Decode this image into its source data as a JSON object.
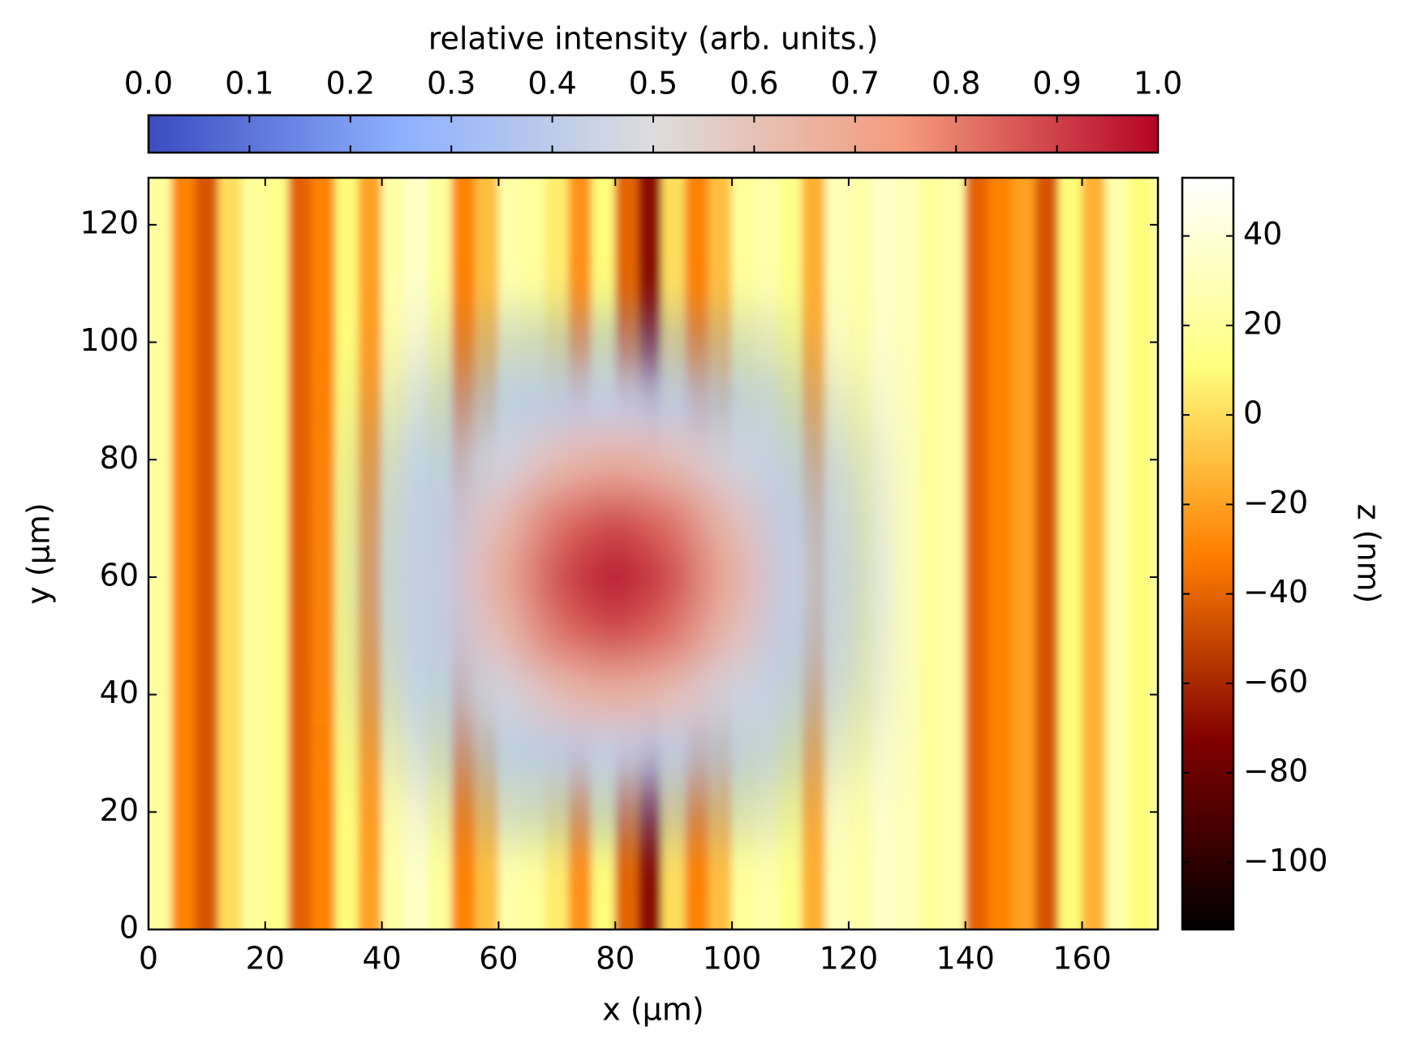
{
  "chart_data": {
    "type": "heatmap",
    "xlabel": "x (µm)",
    "ylabel": "y (µm)",
    "xlim": [
      0,
      173
    ],
    "ylim": [
      0,
      128
    ],
    "xticks": [
      0,
      20,
      40,
      60,
      80,
      100,
      120,
      140,
      160
    ],
    "yticks": [
      0,
      20,
      40,
      60,
      80,
      100,
      120
    ],
    "heatmap": {
      "colormap": "afmhot",
      "x": [
        2,
        6,
        10,
        14,
        18,
        22,
        26,
        30,
        34,
        38,
        42,
        46,
        50,
        54,
        58,
        62,
        66,
        70,
        74,
        78,
        82,
        86,
        90,
        94,
        98,
        102,
        106,
        110,
        114,
        118,
        122,
        126,
        130,
        134,
        138,
        142,
        146,
        150,
        154,
        158,
        162,
        166,
        170
      ],
      "z": [
        20,
        -30,
        -45,
        0,
        20,
        15,
        -40,
        -30,
        10,
        -20,
        25,
        35,
        20,
        -30,
        -10,
        25,
        20,
        5,
        -25,
        10,
        -40,
        -70,
        0,
        -30,
        -10,
        20,
        25,
        15,
        -15,
        30,
        25,
        35,
        30,
        20,
        25,
        -40,
        -30,
        -20,
        -45,
        10,
        -15,
        25,
        10
      ]
    },
    "colorbar": {
      "label": "z (nm)",
      "lim": [
        -115,
        53
      ],
      "ticks": [
        {
          "value": -100,
          "label": "−100"
        },
        {
          "value": -80,
          "label": "−80"
        },
        {
          "value": -60,
          "label": "−60"
        },
        {
          "value": -40,
          "label": "−40"
        },
        {
          "value": -20,
          "label": "−20"
        },
        0,
        20,
        40
      ]
    },
    "overlay": {
      "colormap": "coolwarm",
      "x": [
        40,
        50,
        60,
        70,
        80,
        90,
        100,
        110,
        120
      ],
      "y": [
        20,
        30,
        40,
        50,
        60,
        70,
        80,
        90,
        100
      ],
      "values": [
        [
          0.04,
          0.08,
          0.14,
          0.18,
          0.2,
          0.18,
          0.14,
          0.08,
          0.04
        ],
        [
          0.08,
          0.17,
          0.27,
          0.37,
          0.41,
          0.37,
          0.27,
          0.17,
          0.08
        ],
        [
          0.14,
          0.27,
          0.45,
          0.61,
          0.67,
          0.61,
          0.45,
          0.27,
          0.14
        ],
        [
          0.18,
          0.37,
          0.61,
          0.82,
          0.9,
          0.82,
          0.61,
          0.37,
          0.18
        ],
        [
          0.2,
          0.41,
          0.67,
          0.9,
          1.0,
          0.9,
          0.67,
          0.41,
          0.2
        ],
        [
          0.18,
          0.37,
          0.61,
          0.82,
          0.9,
          0.82,
          0.61,
          0.37,
          0.18
        ],
        [
          0.14,
          0.27,
          0.45,
          0.61,
          0.67,
          0.61,
          0.45,
          0.27,
          0.14
        ],
        [
          0.08,
          0.17,
          0.27,
          0.37,
          0.41,
          0.37,
          0.27,
          0.17,
          0.08
        ],
        [
          0.04,
          0.08,
          0.14,
          0.18,
          0.2,
          0.18,
          0.14,
          0.08,
          0.04
        ]
      ]
    },
    "overlay_colorbar": {
      "label": "relative intensity (arb. units.)",
      "lim": [
        0,
        1
      ],
      "ticks": [
        {
          "value": 0,
          "label": "0.0"
        },
        0.1,
        0.2,
        0.3,
        0.4,
        0.5,
        0.6,
        0.7,
        0.8,
        0.9,
        {
          "value": 1,
          "label": "1.0"
        }
      ]
    }
  }
}
